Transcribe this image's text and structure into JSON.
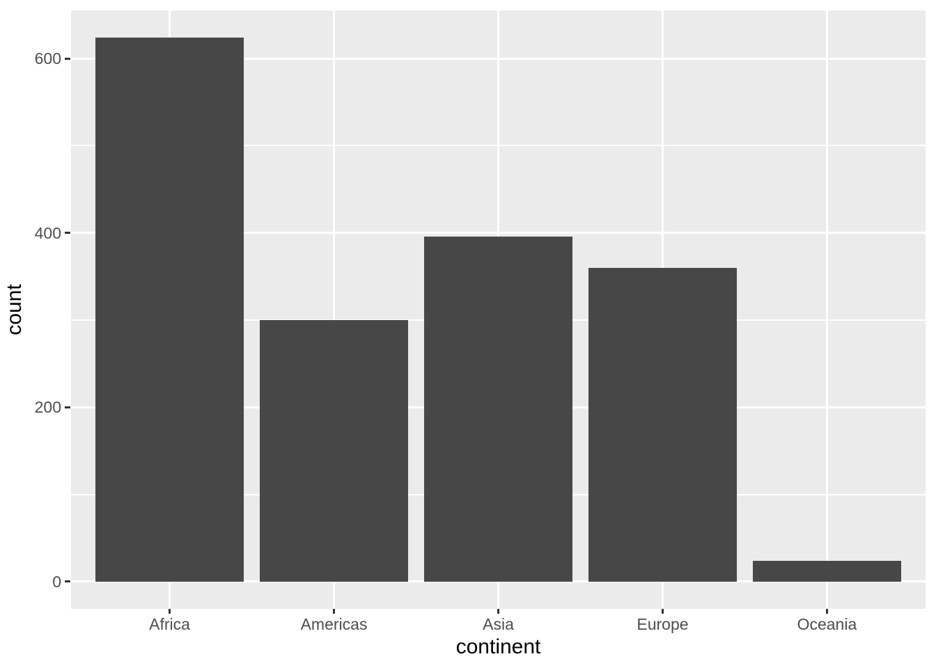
{
  "chart_data": {
    "type": "bar",
    "title": "",
    "xlabel": "continent",
    "ylabel": "count",
    "categories": [
      "Africa",
      "Americas",
      "Asia",
      "Europe",
      "Oceania"
    ],
    "values": [
      624,
      300,
      396,
      360,
      24
    ],
    "y_major_ticks": [
      0,
      200,
      400,
      600
    ],
    "y_minor_ticks": [
      100,
      300,
      500
    ],
    "ylim": [
      -31.2,
      655.2
    ],
    "bar_rel_width": 0.9,
    "x_expansion": 0.6,
    "legend": "none",
    "grid": "white major and minor gridlines on grey panel",
    "style": {
      "panel_bg": "#EBEBEB",
      "plot_bg": "#FFFFFF",
      "bar_fill": "#474747",
      "grid_color": "#FFFFFF",
      "tick_mark_color": "#333333",
      "tick_label_color": "#4D4D4D",
      "axis_title_color": "#000000"
    }
  }
}
